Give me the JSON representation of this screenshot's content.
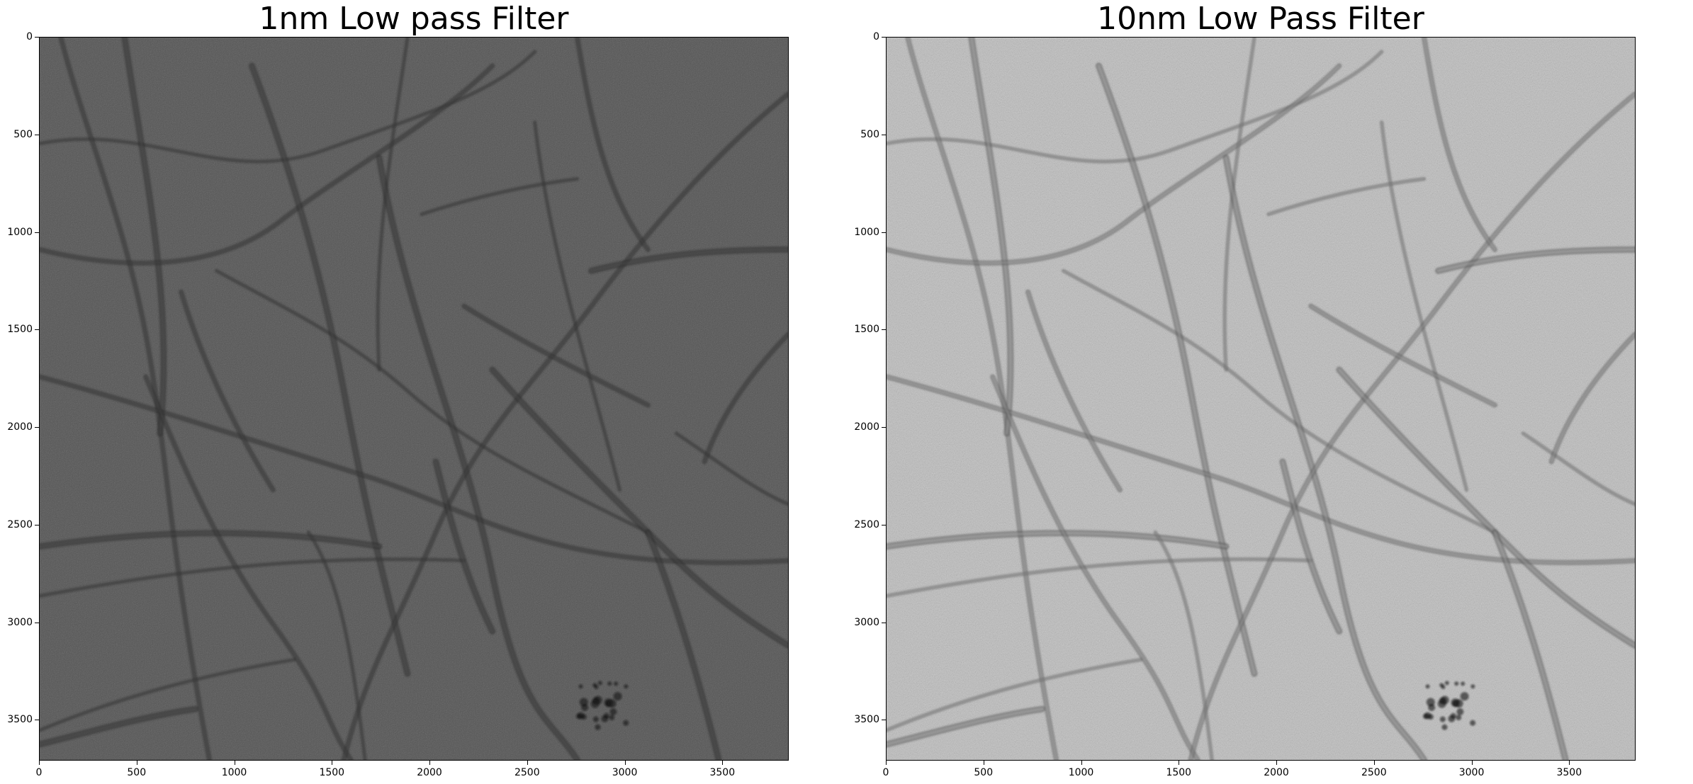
{
  "panels": [
    {
      "title": "1nm Low pass Filter",
      "background_color": "#545454",
      "fiber_color": "#2e2e2e",
      "noise_contrast": 0.25,
      "xticks": [
        "0",
        "500",
        "1000",
        "1500",
        "2000",
        "2500",
        "3000",
        "3500"
      ],
      "yticks": [
        "0",
        "500",
        "1000",
        "1500",
        "2000",
        "2500",
        "3000",
        "3500"
      ]
    },
    {
      "title": "10nm Low Pass Filter",
      "background_color": "#bdbdbd",
      "fiber_color": "#575757",
      "noise_contrast": 0.55,
      "xticks": [
        "0",
        "500",
        "1000",
        "1500",
        "2000",
        "2500",
        "3000",
        "3500"
      ],
      "yticks": [
        "0",
        "500",
        "1000",
        "1500",
        "2000",
        "2500",
        "3000",
        "3500"
      ]
    }
  ]
}
